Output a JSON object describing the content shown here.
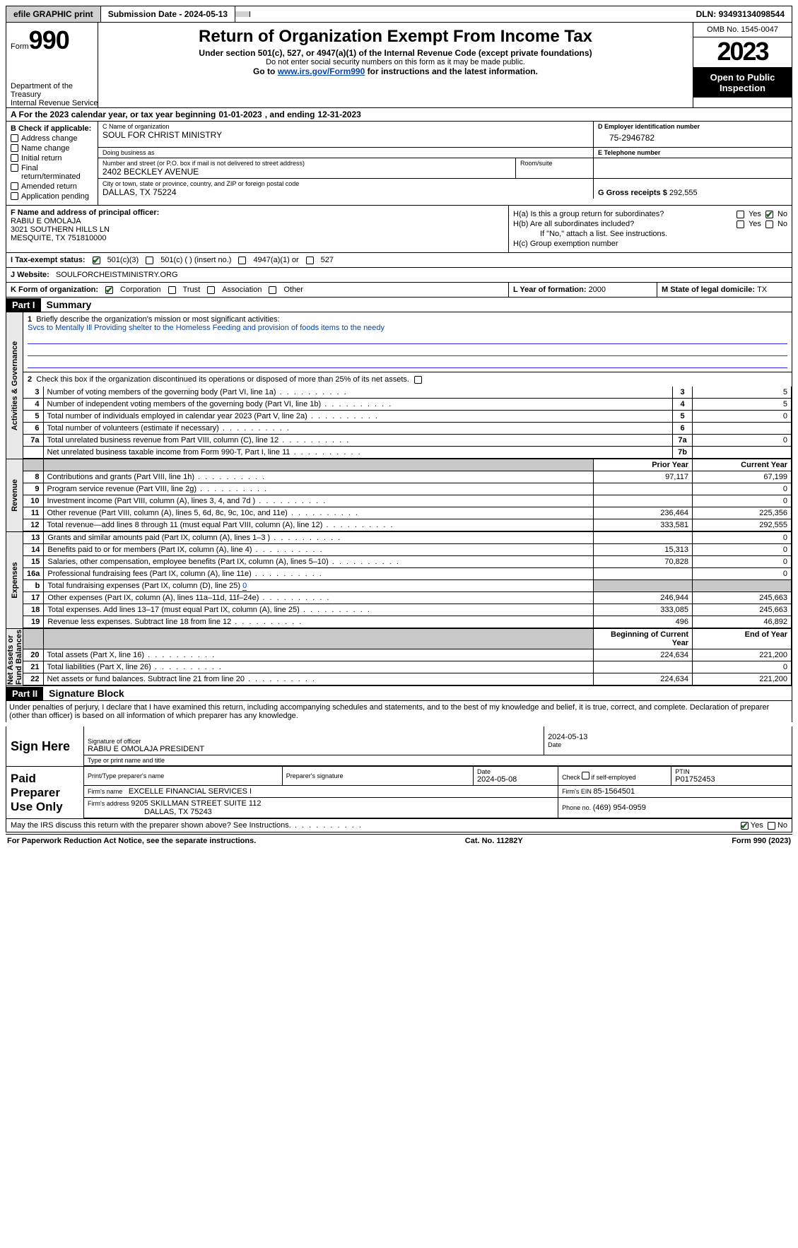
{
  "topbar": {
    "efile": "efile GRAPHIC print",
    "submission_label": "Submission Date - ",
    "submission_date": "2024-05-13",
    "dln_label": "DLN: ",
    "dln": "93493134098544"
  },
  "header": {
    "form_prefix": "Form",
    "form_no": "990",
    "dept1": "Department of the Treasury",
    "dept2": "Internal Revenue Service",
    "title": "Return of Organization Exempt From Income Tax",
    "subtitle": "Under section 501(c), 527, or 4947(a)(1) of the Internal Revenue Code (except private foundations)",
    "warn": "Do not enter social security numbers on this form as it may be made public.",
    "goto_pre": "Go to ",
    "goto_link": "www.irs.gov/Form990",
    "goto_post": " for instructions and the latest information.",
    "omb": "OMB No. 1545-0047",
    "year": "2023",
    "open": "Open to Public Inspection"
  },
  "rowA": {
    "pre": "A   For the 2023 calendar year, or tax year beginning ",
    "begin": "01-01-2023",
    "mid": "   , and ending ",
    "end": "12-31-2023"
  },
  "B": {
    "title": "B Check if applicable:",
    "items": [
      "Address change",
      "Name change",
      "Initial return",
      "Final return/terminated",
      "Amended return",
      "Application pending"
    ]
  },
  "C": {
    "name_lbl": "C Name of organization",
    "name": "SOUL FOR CHRIST MINISTRY",
    "dba_lbl": "Doing business as",
    "dba": "",
    "addr_lbl": "Number and street (or P.O. box if mail is not delivered to street address)",
    "addr": "2402 BECKLEY AVENUE",
    "room_lbl": "Room/suite",
    "room": "",
    "city_lbl": "City or town, state or province, country, and ZIP or foreign postal code",
    "city": "DALLAS, TX  75224"
  },
  "D": {
    "lbl": "D Employer identification number",
    "val": "75-2946782"
  },
  "E": {
    "lbl": "E Telephone number",
    "val": ""
  },
  "G": {
    "lbl": "G Gross receipts $ ",
    "val": "292,555"
  },
  "F": {
    "lbl": "F  Name and address of principal officer:",
    "l1": "RABIU E OMOLAJA",
    "l2": "3021 SOUTHERN HILLS LN",
    "l3": "MESQUITE, TX  751810000"
  },
  "H": {
    "a_lbl": "H(a)  Is this a group return for subordinates?",
    "a_yes": "Yes",
    "a_no": "No",
    "b_lbl": "H(b)  Are all subordinates included?",
    "b_yes": "Yes",
    "b_no": "No",
    "b_note": "If \"No,\" attach a list. See instructions.",
    "c_lbl": "H(c)  Group exemption number "
  },
  "I": {
    "lbl": "I   Tax-exempt status:",
    "o1": "501(c)(3)",
    "o2": "501(c) (  ) (insert no.)",
    "o3": "4947(a)(1) or",
    "o4": "527"
  },
  "J": {
    "lbl": "J   Website:",
    "val": "SOULFORCHEISTMINISTRY.ORG"
  },
  "K": {
    "lbl": "K Form of organization:",
    "o1": "Corporation",
    "o2": "Trust",
    "o3": "Association",
    "o4": "Other"
  },
  "L": {
    "lbl": "L Year of formation: ",
    "val": "2000"
  },
  "M": {
    "lbl": "M State of legal domicile: ",
    "val": "TX"
  },
  "partI": {
    "tag": "Part I",
    "title": "Summary"
  },
  "summary": {
    "q1_lbl": "Briefly describe the organization's mission or most significant activities:",
    "q1_val": "Svcs to Mentally Ill Providing shelter to the Homeless Feeding and provision of foods items to the needy",
    "q2": "Check this box           if the organization discontinued its operations or disposed of more than 25% of its net assets.",
    "rows_gov": [
      {
        "n": "3",
        "t": "Number of voting members of the governing body (Part VI, line 1a)",
        "rn": "3",
        "v": "5"
      },
      {
        "n": "4",
        "t": "Number of independent voting members of the governing body (Part VI, line 1b)",
        "rn": "4",
        "v": "5"
      },
      {
        "n": "5",
        "t": "Total number of individuals employed in calendar year 2023 (Part V, line 2a)",
        "rn": "5",
        "v": "0"
      },
      {
        "n": "6",
        "t": "Total number of volunteers (estimate if necessary)",
        "rn": "6",
        "v": ""
      },
      {
        "n": "7a",
        "t": "Total unrelated business revenue from Part VIII, column (C), line 12",
        "rn": "7a",
        "v": "0"
      },
      {
        "n": "",
        "t": "Net unrelated business taxable income from Form 990-T, Part I, line 11",
        "rn": "7b",
        "v": ""
      }
    ],
    "rev_hdr_prior": "Prior Year",
    "rev_hdr_cur": "Current Year",
    "rows_rev": [
      {
        "n": "8",
        "t": "Contributions and grants (Part VIII, line 1h)",
        "p": "97,117",
        "c": "67,199"
      },
      {
        "n": "9",
        "t": "Program service revenue (Part VIII, line 2g)",
        "p": "",
        "c": "0"
      },
      {
        "n": "10",
        "t": "Investment income (Part VIII, column (A), lines 3, 4, and 7d )",
        "p": "",
        "c": "0"
      },
      {
        "n": "11",
        "t": "Other revenue (Part VIII, column (A), lines 5, 6d, 8c, 9c, 10c, and 11e)",
        "p": "236,464",
        "c": "225,356"
      },
      {
        "n": "12",
        "t": "Total revenue—add lines 8 through 11 (must equal Part VIII, column (A), line 12)",
        "p": "333,581",
        "c": "292,555"
      }
    ],
    "rows_exp": [
      {
        "n": "13",
        "t": "Grants and similar amounts paid (Part IX, column (A), lines 1–3 )",
        "p": "",
        "c": "0"
      },
      {
        "n": "14",
        "t": "Benefits paid to or for members (Part IX, column (A), line 4)",
        "p": "15,313",
        "c": "0"
      },
      {
        "n": "15",
        "t": "Salaries, other compensation, employee benefits (Part IX, column (A), lines 5–10)",
        "p": "70,828",
        "c": "0"
      },
      {
        "n": "16a",
        "t": "Professional fundraising fees (Part IX, column (A), line 11e)",
        "p": "",
        "c": "0"
      },
      {
        "n": "b",
        "t": "Total fundraising expenses (Part IX, column (D), line 25) ",
        "fund": "0",
        "shade": true
      },
      {
        "n": "17",
        "t": "Other expenses (Part IX, column (A), lines 11a–11d, 11f–24e)",
        "p": "246,944",
        "c": "245,663"
      },
      {
        "n": "18",
        "t": "Total expenses. Add lines 13–17 (must equal Part IX, column (A), line 25)",
        "p": "333,085",
        "c": "245,663"
      },
      {
        "n": "19",
        "t": "Revenue less expenses. Subtract line 18 from line 12",
        "p": "496",
        "c": "46,892"
      }
    ],
    "na_hdr_b": "Beginning of Current Year",
    "na_hdr_e": "End of Year",
    "rows_na": [
      {
        "n": "20",
        "t": "Total assets (Part X, line 16)",
        "p": "224,634",
        "c": "221,200"
      },
      {
        "n": "21",
        "t": "Total liabilities (Part X, line 26)",
        "p": "",
        "c": "0"
      },
      {
        "n": "22",
        "t": "Net assets or fund balances. Subtract line 21 from line 20",
        "p": "224,634",
        "c": "221,200"
      }
    ]
  },
  "partII": {
    "tag": "Part II",
    "title": "Signature Block",
    "decl": "Under penalties of perjury, I declare that I have examined this return, including accompanying schedules and statements, and to the best of my knowledge and belief, it is true, correct, and complete. Declaration of preparer (other than officer) is based on all information of which preparer has any knowledge."
  },
  "sign": {
    "here": "Sign Here",
    "sig_lbl": "Signature of officer",
    "sig_name": "RABIU E OMOLAJA  PRESIDENT",
    "date_lbl": "Date",
    "date": "2024-05-13",
    "type_lbl": "Type or print name and title"
  },
  "paid": {
    "lbl": "Paid Preparer Use Only",
    "name_lbl": "Print/Type preparer's name",
    "name": "",
    "sig_lbl": "Preparer's signature",
    "sig": "",
    "date_lbl": "Date",
    "date": "2024-05-08",
    "self_lbl": "Check         if self-employed",
    "ptin_lbl": "PTIN",
    "ptin": "P01752453",
    "firm_name_lbl": "Firm's name   ",
    "firm_name": "EXCELLE FINANCIAL SERVICES I",
    "firm_ein_lbl": "Firm's EIN ",
    "firm_ein": "85-1564501",
    "firm_addr_lbl": "Firm's address ",
    "firm_addr1": "9205 SKILLMAN STREET SUITE 112",
    "firm_addr2": "DALLAS, TX  75243",
    "phone_lbl": "Phone no. ",
    "phone": "(469) 954-0959"
  },
  "mayirs": {
    "q": "May the IRS discuss this return with the preparer shown above? See Instructions.",
    "yes": "Yes",
    "no": "No"
  },
  "footer": {
    "left": "For Paperwork Reduction Act Notice, see the separate instructions.",
    "mid": "Cat. No. 11282Y",
    "right_pre": "Form ",
    "right_b": "990",
    "right_post": " (2023)"
  }
}
